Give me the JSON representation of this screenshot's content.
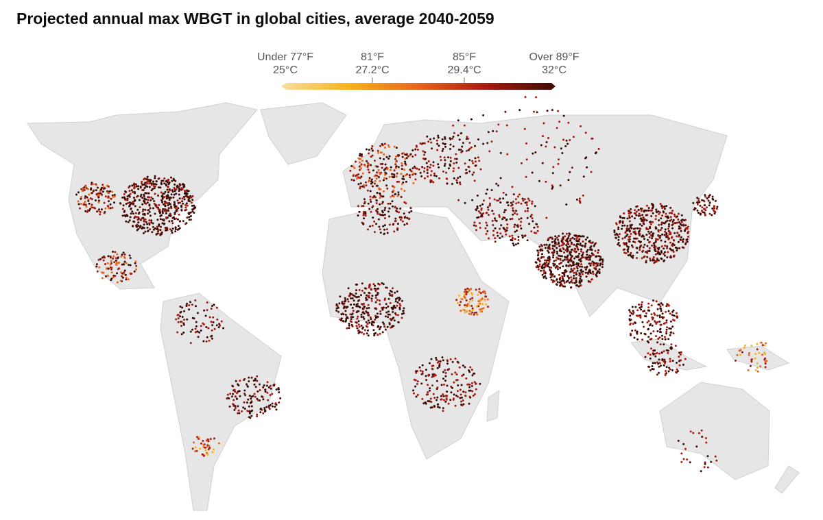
{
  "title": "Projected annual max WBGT in global cities, average 2040-2059",
  "legend": {
    "stops": [
      {
        "fahrenheit": "Under 77°F",
        "celsius": "25°C"
      },
      {
        "fahrenheit": "81°F",
        "celsius": "27.2°C"
      },
      {
        "fahrenheit": "85°F",
        "celsius": "29.4°C"
      },
      {
        "fahrenheit": "Over 89°F",
        "celsius": "32°C"
      }
    ],
    "colors": [
      "#f5dfa0",
      "#f7b21c",
      "#e9641c",
      "#a8190f",
      "#3d0b05"
    ]
  }
}
